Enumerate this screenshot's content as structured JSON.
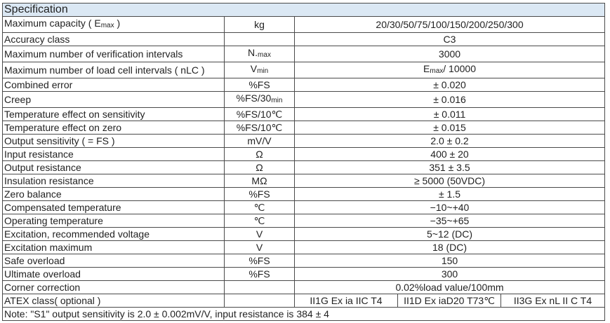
{
  "header": {
    "title": "Specification"
  },
  "table": {
    "rows": [
      [
        [
          "Maximum capacity ( E",
          {
            "sub": "max"
          },
          " )"
        ],
        "kg",
        "20/30/50/75/100/150/200/250/300"
      ],
      [
        "Accuracy class",
        "",
        "C3"
      ],
      [
        "Maximum number of verification intervals",
        [
          "N.",
          {
            "sub": "max"
          }
        ],
        "3000"
      ],
      [
        "Maximum number of load cell intervals ( nLC )",
        [
          "V",
          {
            "sub": "min"
          }
        ],
        [
          "E",
          {
            "sub": "max"
          },
          "/ 10000"
        ]
      ],
      [
        "Combined error",
        "%FS",
        "± 0.020"
      ],
      [
        "Creep",
        [
          "%FS/30",
          {
            "sub": "min"
          }
        ],
        "± 0.016"
      ],
      [
        "Temperature effect on sensitivity",
        "%FS/10℃",
        "± 0.011"
      ],
      [
        "Temperature effect on zero",
        "%FS/10℃",
        "± 0.015"
      ],
      [
        "Output sensitivity ( = FS )",
        "mV/V",
        "2.0 ± 0.2"
      ],
      [
        "Input resistance",
        "Ω",
        "400 ± 20"
      ],
      [
        "Output resistance",
        "Ω",
        "351 ± 3.5"
      ],
      [
        "Insulation resistance",
        "MΩ",
        "≥ 5000 (50VDC)"
      ],
      [
        "Zero balance",
        "%FS",
        "± 1.5"
      ],
      [
        "Compensated temperature",
        "℃",
        "−10~+40"
      ],
      [
        "Operating temperature",
        "℃",
        "−35~+65"
      ],
      [
        "Excitation, recommended voltage",
        "V",
        "5~12 (DC)"
      ],
      [
        "Excitation maximum",
        "V",
        "18 (DC)"
      ],
      [
        "Safe overload",
        "%FS",
        "150"
      ],
      [
        "Ultimate overload",
        "%FS",
        "300"
      ],
      [
        "Corner correction",
        "",
        "0.02%load value/100mm"
      ]
    ],
    "atex": {
      "label": "ATEX class( optional )",
      "values": [
        "II1G Ex ia IIC T4",
        "II1D Ex iaD20 T73℃",
        "II3G Ex nL II C T4"
      ]
    },
    "note": "Note: \"S1\" output sensitivity is 2.0 ± 0.002mV/V, input resistance is 384 ± 4"
  }
}
